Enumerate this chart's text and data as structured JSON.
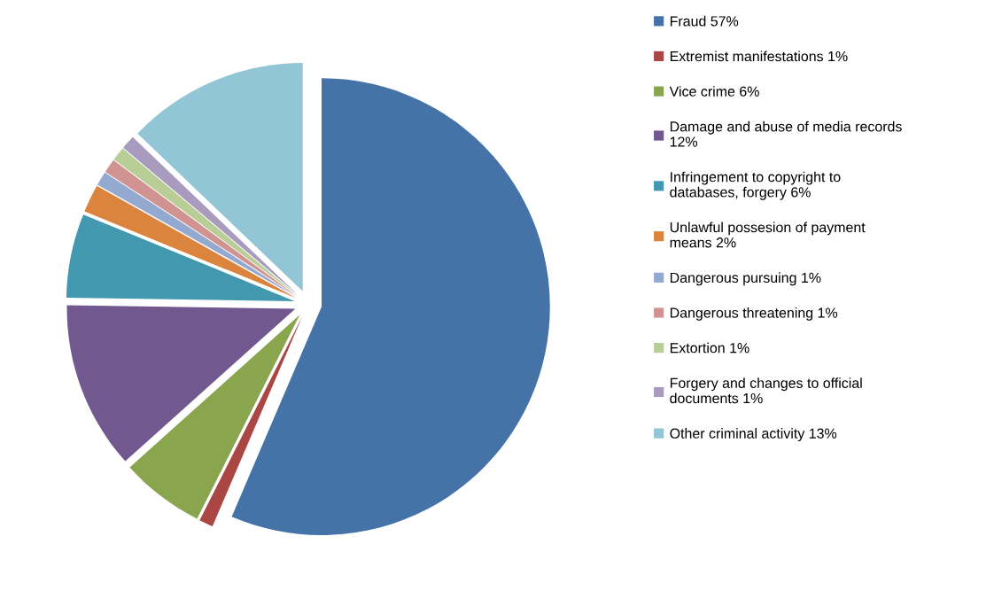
{
  "chart_data": {
    "type": "pie",
    "categories": [
      "Fraud",
      "Extremist manifestations",
      "Vice crime",
      "Damage and abuse of media records",
      "Infringement to copyright to databases, forgery",
      "Unlawful possesion of payment means",
      "Dangerous pursuing",
      "Dangerous threatening",
      "Extortion",
      "Forgery and changes to official documents",
      "Other criminal activity"
    ],
    "values": [
      57,
      1,
      6,
      12,
      6,
      2,
      1,
      1,
      1,
      1,
      13
    ],
    "value_labels": [
      "57%",
      "1%",
      "6%",
      "12%",
      "6%",
      "2%",
      "1%",
      "1%",
      "1%",
      "1%",
      "13%"
    ],
    "colors": [
      "#4572a7",
      "#aa4643",
      "#89a54e",
      "#71588f",
      "#4198af",
      "#db843d",
      "#93a9cf",
      "#d19392",
      "#b9cd96",
      "#a99bbd",
      "#92c5d6"
    ],
    "legend": "right"
  }
}
